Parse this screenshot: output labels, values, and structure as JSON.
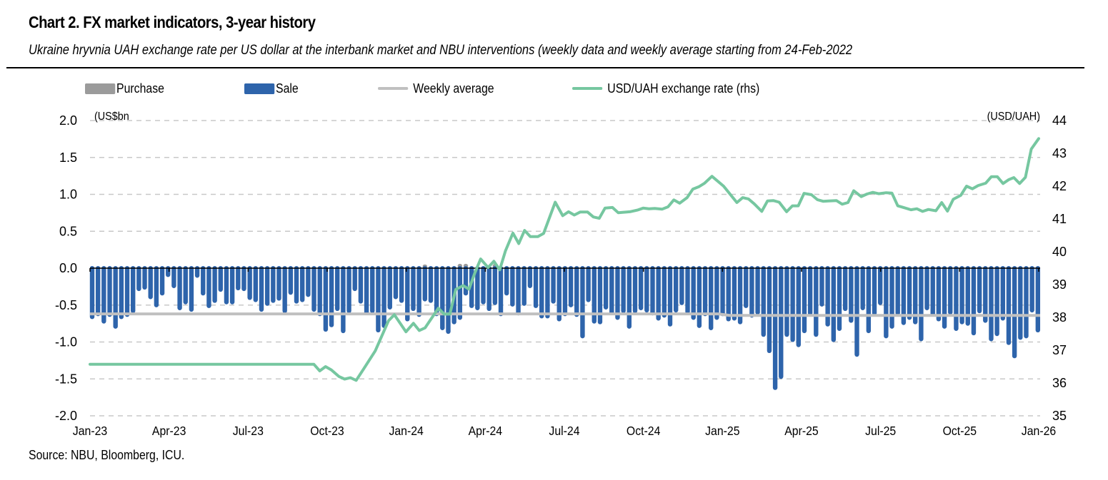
{
  "header": {
    "title": "Chart 2. FX market indicators, 3-year history",
    "subtitle": "Ukraine hryvnia UAH exchange rate per US dollar at the interbank market and NBU interventions (weekly data and weekly average starting from 24-Feb-2022"
  },
  "legend": [
    {
      "label": "Purchase",
      "kind": "bar",
      "color": "#9b9b9b"
    },
    {
      "label": "Sale",
      "kind": "bar",
      "color": "#2e64ab"
    },
    {
      "label": "Weekly average",
      "kind": "line",
      "color": "#c0c0c0"
    },
    {
      "label": "USD/UAH exchange rate (rhs)",
      "kind": "line",
      "color": "#76c7a0"
    }
  ],
  "footer": {
    "source": "Source: NBU, Bloomberg, ICU."
  },
  "chart_data": {
    "type": "bar",
    "title": "Chart 2. FX market indicators, 3-year history",
    "subtitle": "Ukraine hryvnia UAH exchange rate per US dollar at the interbank market and NBU interventions (weekly data and weekly average starting from 24-Feb-2022",
    "xlabel": "",
    "ylabel": "(US$bn",
    "y2label": "(USD/UAH)",
    "ylim": [
      -2.0,
      2.0
    ],
    "y2lim": [
      35,
      44
    ],
    "yticks": [
      "2.0",
      "1.5",
      "1.0",
      "0.5",
      "0.0",
      "-0.5",
      "-1.0",
      "-1.5",
      "-2.0"
    ],
    "y2ticks": [
      "44",
      "43",
      "42",
      "41",
      "40",
      "39",
      "38",
      "37",
      "36",
      "35"
    ],
    "xticks": [
      "Jan-23",
      "Apr-23",
      "Jul-23",
      "Oct-23",
      "Jan-24",
      "Apr-24",
      "Jul-24",
      "Oct-24",
      "Jan-25",
      "Apr-25",
      "Jul-25",
      "Oct-25",
      "Jan-26"
    ],
    "grid": "horizontal dashed",
    "legend_position": "top",
    "x_start": "Jan-23",
    "x_end": "Jan-26",
    "frequency": "weekly",
    "colors": {
      "purchase": "#9b9b9b",
      "sale": "#2e64ab",
      "weekly_average": "#c0c0c0",
      "usd_uah": "#76c7a0"
    },
    "series": [
      {
        "name": "Purchase",
        "axis": "left",
        "values": [
          0,
          0,
          0,
          0,
          0,
          0,
          0,
          0,
          0,
          0,
          0,
          0,
          0,
          0,
          0,
          0,
          0,
          0,
          0,
          0,
          0,
          0,
          0,
          0,
          0,
          0,
          0,
          0,
          0,
          0,
          0,
          0,
          0,
          0,
          0,
          0,
          0,
          0,
          0,
          0,
          0,
          0,
          0,
          0,
          0,
          0,
          0,
          0,
          0,
          0,
          0,
          0,
          0,
          0,
          0,
          0,
          0,
          0.02,
          0,
          0,
          0,
          0,
          0,
          0.03,
          0.03,
          0,
          0,
          0,
          0,
          0.03,
          0,
          0,
          0,
          0,
          0,
          0,
          0,
          0,
          0,
          0,
          0,
          0,
          0,
          0,
          0,
          0,
          0,
          0,
          0,
          0,
          0,
          0,
          0,
          0,
          0,
          0,
          0,
          0,
          0,
          0,
          0,
          0,
          0,
          0,
          0,
          0,
          0,
          0,
          0,
          0,
          0,
          0,
          0,
          0,
          0,
          0,
          0,
          0,
          0,
          0,
          0,
          0,
          0,
          0,
          0,
          0,
          0,
          0,
          0,
          0,
          0,
          0,
          0,
          0,
          0,
          0,
          0,
          0,
          0,
          0,
          0,
          0,
          0,
          0,
          0,
          0,
          0,
          0,
          0,
          0,
          0,
          0,
          0,
          0,
          0,
          0,
          0
        ]
      },
      {
        "name": "Sale",
        "axis": "left",
        "values": [
          -0.69,
          -0.65,
          -0.75,
          -0.66,
          -0.82,
          -0.69,
          -0.66,
          -0.61,
          -0.31,
          -0.29,
          -0.42,
          -0.53,
          -0.37,
          -0.12,
          -0.27,
          -0.57,
          -0.49,
          -0.59,
          -0.13,
          -0.37,
          -0.54,
          -0.47,
          -0.32,
          -0.49,
          -0.49,
          -0.3,
          -0.31,
          -0.43,
          -0.46,
          -0.59,
          -0.51,
          -0.47,
          -0.44,
          -0.61,
          -0.36,
          -0.48,
          -0.46,
          -0.39,
          -0.59,
          -0.65,
          -0.86,
          -0.8,
          -0.58,
          -0.88,
          -0.61,
          -0.31,
          -0.48,
          -0.63,
          -0.61,
          -0.87,
          -0.81,
          -0.56,
          -0.42,
          -0.47,
          -0.72,
          -0.58,
          -0.66,
          -0.45,
          -0.47,
          -0.65,
          -0.84,
          -0.89,
          -0.76,
          -0.7,
          -0.37,
          -0.54,
          -0.57,
          -0.49,
          -0.58,
          -0.5,
          -0.65,
          -0.37,
          -0.52,
          -0.64,
          -0.51,
          -0.27,
          -0.54,
          -0.68,
          -0.68,
          -0.48,
          -0.72,
          -0.65,
          -0.53,
          -0.66,
          -0.95,
          -0.46,
          -0.75,
          -0.76,
          -0.56,
          -0.63,
          -0.7,
          -0.61,
          -0.82,
          -0.61,
          -0.57,
          -0.6,
          -0.64,
          -0.71,
          -0.67,
          -0.79,
          -0.6,
          -0.5,
          -0.62,
          -0.7,
          -0.81,
          -0.65,
          -0.84,
          -0.7,
          -0.65,
          -0.72,
          -0.71,
          -0.76,
          -0.54,
          -0.67,
          -0.63,
          -0.93,
          -1.15,
          -1.65,
          -1.5,
          -0.93,
          -1.0,
          -1.07,
          -0.88,
          -0.64,
          -0.93,
          -0.52,
          -0.79,
          -1.0,
          -0.85,
          -0.58,
          -0.74,
          -1.2,
          -0.57,
          -0.88,
          -0.64,
          -0.5,
          -0.95,
          -0.82,
          -0.64,
          -0.77,
          -0.7,
          -0.76,
          -0.99,
          -0.57,
          -0.65,
          -0.72,
          -0.82,
          -0.63,
          -0.85,
          -0.76,
          -0.78,
          -0.91,
          -0.61,
          -0.74,
          -0.99,
          -0.92,
          -0.71,
          -1.04,
          -1.22,
          -0.97,
          -0.95,
          -0.6,
          -0.87
        ]
      },
      {
        "name": "Weekly average",
        "axis": "left",
        "kind": "line",
        "values_by_segment": [
          {
            "from": "Jan-23",
            "to": "Jan-25",
            "value": -0.62
          },
          {
            "from": "Jan-25",
            "to": "Jan-26",
            "value": -0.64
          }
        ]
      },
      {
        "name": "USD/UAH exchange rate (rhs)",
        "axis": "right",
        "kind": "line",
        "points": [
          {
            "x": "2023-01",
            "y": 36.57
          },
          {
            "x": "2023-10-01",
            "y": 36.57
          },
          {
            "x": "2023-10-08",
            "y": 36.37
          },
          {
            "x": "2023-10-15",
            "y": 36.5
          },
          {
            "x": "2023-10-22",
            "y": 36.4
          },
          {
            "x": "2023-11-01",
            "y": 36.2
          },
          {
            "x": "2023-11-08",
            "y": 36.12
          },
          {
            "x": "2023-11-15",
            "y": 36.16
          },
          {
            "x": "2023-11-22",
            "y": 36.08
          },
          {
            "x": "2023-12-01",
            "y": 36.43
          },
          {
            "x": "2023-12-15",
            "y": 36.98
          },
          {
            "x": "2024-01-01",
            "y": 37.9
          },
          {
            "x": "2024-01-08",
            "y": 38.08
          },
          {
            "x": "2024-01-22",
            "y": 37.56
          },
          {
            "x": "2024-02-01",
            "y": 37.82
          },
          {
            "x": "2024-02-08",
            "y": 37.6
          },
          {
            "x": "2024-02-15",
            "y": 37.68
          },
          {
            "x": "2024-03-01",
            "y": 38.28
          },
          {
            "x": "2024-03-08",
            "y": 38.1
          },
          {
            "x": "2024-03-15",
            "y": 38.1
          },
          {
            "x": "2024-03-22",
            "y": 38.85
          },
          {
            "x": "2024-04-01",
            "y": 38.97
          },
          {
            "x": "2024-04-08",
            "y": 38.86
          },
          {
            "x": "2024-04-15",
            "y": 39.35
          },
          {
            "x": "2024-04-22",
            "y": 39.78
          },
          {
            "x": "2024-05-01",
            "y": 39.52
          },
          {
            "x": "2024-05-08",
            "y": 39.71
          },
          {
            "x": "2024-05-15",
            "y": 39.45
          },
          {
            "x": "2024-05-22",
            "y": 40.03
          },
          {
            "x": "2024-06-01",
            "y": 40.57
          },
          {
            "x": "2024-06-08",
            "y": 40.25
          },
          {
            "x": "2024-06-15",
            "y": 40.65
          },
          {
            "x": "2024-06-22",
            "y": 40.46
          },
          {
            "x": "2024-07-01",
            "y": 40.46
          },
          {
            "x": "2024-07-08",
            "y": 40.56
          },
          {
            "x": "2024-07-22",
            "y": 41.51
          },
          {
            "x": "2024-08-01",
            "y": 41.1
          },
          {
            "x": "2024-08-08",
            "y": 41.22
          },
          {
            "x": "2024-08-15",
            "y": 41.12
          },
          {
            "x": "2024-08-22",
            "y": 41.21
          },
          {
            "x": "2024-09-01",
            "y": 41.21
          },
          {
            "x": "2024-09-08",
            "y": 41.06
          },
          {
            "x": "2024-09-15",
            "y": 41.02
          },
          {
            "x": "2024-09-22",
            "y": 41.33
          },
          {
            "x": "2024-10-01",
            "y": 41.35
          },
          {
            "x": "2024-10-08",
            "y": 41.19
          },
          {
            "x": "2024-10-22",
            "y": 41.22
          },
          {
            "x": "2024-11-01",
            "y": 41.27
          },
          {
            "x": "2024-11-08",
            "y": 41.33
          },
          {
            "x": "2024-11-15",
            "y": 41.31
          },
          {
            "x": "2024-11-22",
            "y": 41.32
          },
          {
            "x": "2024-12-01",
            "y": 41.3
          },
          {
            "x": "2024-12-08",
            "y": 41.37
          },
          {
            "x": "2024-12-15",
            "y": 41.58
          },
          {
            "x": "2024-12-22",
            "y": 41.48
          },
          {
            "x": "2025-01-01",
            "y": 41.65
          },
          {
            "x": "2025-01-08",
            "y": 41.91
          },
          {
            "x": "2025-01-15",
            "y": 41.98
          },
          {
            "x": "2025-01-22",
            "y": 42.09
          },
          {
            "x": "2025-02-01",
            "y": 42.3
          },
          {
            "x": "2025-02-15",
            "y": 42.0
          },
          {
            "x": "2025-03-01",
            "y": 41.5
          },
          {
            "x": "2025-03-08",
            "y": 41.65
          },
          {
            "x": "2025-03-15",
            "y": 41.61
          },
          {
            "x": "2025-03-22",
            "y": 41.46
          },
          {
            "x": "2025-04-01",
            "y": 41.23
          },
          {
            "x": "2025-04-08",
            "y": 41.55
          },
          {
            "x": "2025-04-15",
            "y": 41.56
          },
          {
            "x": "2025-04-22",
            "y": 41.51
          },
          {
            "x": "2025-05-01",
            "y": 41.22
          },
          {
            "x": "2025-05-08",
            "y": 41.4
          },
          {
            "x": "2025-05-15",
            "y": 41.4
          },
          {
            "x": "2025-05-22",
            "y": 41.78
          },
          {
            "x": "2025-06-01",
            "y": 41.74
          },
          {
            "x": "2025-06-08",
            "y": 41.59
          },
          {
            "x": "2025-06-15",
            "y": 41.54
          },
          {
            "x": "2025-06-22",
            "y": 41.55
          },
          {
            "x": "2025-07-01",
            "y": 41.56
          },
          {
            "x": "2025-07-08",
            "y": 41.45
          },
          {
            "x": "2025-07-15",
            "y": 41.5
          },
          {
            "x": "2025-07-22",
            "y": 41.86
          },
          {
            "x": "2025-08-01",
            "y": 41.68
          },
          {
            "x": "2025-08-08",
            "y": 41.76
          },
          {
            "x": "2025-08-15",
            "y": 41.81
          },
          {
            "x": "2025-08-22",
            "y": 41.77
          },
          {
            "x": "2025-09-01",
            "y": 41.8
          },
          {
            "x": "2025-09-08",
            "y": 41.79
          },
          {
            "x": "2025-09-15",
            "y": 41.4
          },
          {
            "x": "2025-09-22",
            "y": 41.35
          },
          {
            "x": "2025-10-01",
            "y": 41.28
          },
          {
            "x": "2025-10-08",
            "y": 41.31
          },
          {
            "x": "2025-10-15",
            "y": 41.23
          },
          {
            "x": "2025-10-22",
            "y": 41.29
          },
          {
            "x": "2025-11-01",
            "y": 41.25
          },
          {
            "x": "2025-11-08",
            "y": 41.5
          },
          {
            "x": "2025-11-15",
            "y": 41.24
          },
          {
            "x": "2025-11-22",
            "y": 41.6
          },
          {
            "x": "2025-12-01",
            "y": 41.72
          },
          {
            "x": "2025-12-08",
            "y": 42.0
          },
          {
            "x": "2025-12-15",
            "y": 41.92
          },
          {
            "x": "2025-12-22",
            "y": 42.02
          },
          {
            "x": "2026-01-01",
            "y": 42.09
          },
          {
            "x": "2026-01-08",
            "y": 42.29
          },
          {
            "x": "2026-01-15",
            "y": 42.29
          },
          {
            "x": "2026-01-22",
            "y": 42.08
          },
          {
            "x": "2026-01-29",
            "y": 42.2
          },
          {
            "x": "2026-02-05",
            "y": 42.26
          },
          {
            "x": "2026-02-12",
            "y": 42.08
          },
          {
            "x": "2026-02-19",
            "y": 42.27
          },
          {
            "x": "2026-02-26",
            "y": 43.13
          },
          {
            "x": "2026-03-05",
            "y": 43.45
          }
        ]
      }
    ]
  }
}
